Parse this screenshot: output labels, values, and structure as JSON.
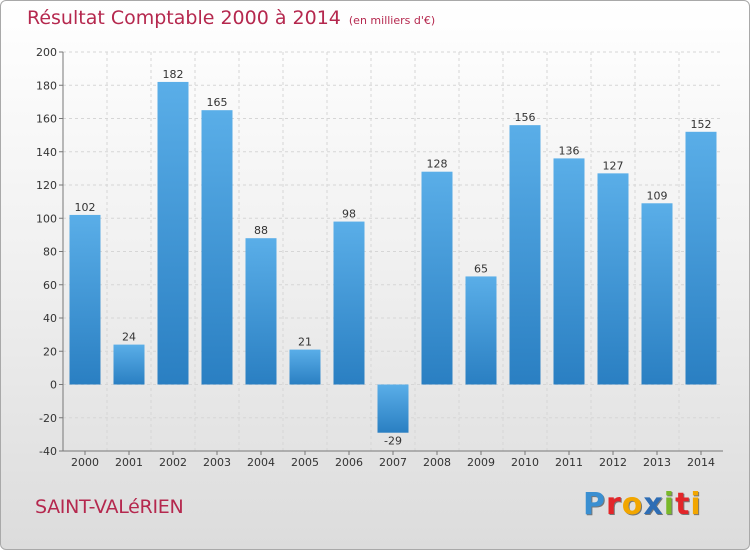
{
  "header": {
    "title": "Résultat Comptable 2000 à 2014",
    "subtitle": "(en milliers d'€)"
  },
  "footer": {
    "town": "SAINT-VALéRIEN",
    "logo_letters": [
      "P",
      "r",
      "o",
      "x",
      "i",
      "t",
      "i"
    ]
  },
  "colors": {
    "title": "#b5284e",
    "bar_top": "#5aaee8",
    "bar_bottom": "#2a7fc2",
    "grid": "#d6d6d6"
  },
  "chart_data": {
    "type": "bar",
    "title": "Résultat Comptable 2000 à 2014",
    "subtitle": "(en milliers d'€)",
    "categories": [
      "2000",
      "2001",
      "2002",
      "2003",
      "2004",
      "2005",
      "2006",
      "2007",
      "2008",
      "2009",
      "2010",
      "2011",
      "2012",
      "2013",
      "2014"
    ],
    "values": [
      102,
      24,
      182,
      165,
      88,
      21,
      98,
      -29,
      128,
      65,
      156,
      136,
      127,
      109,
      152
    ],
    "ylim": [
      -40,
      200
    ],
    "yticks": [
      -40,
      -20,
      0,
      20,
      40,
      60,
      80,
      100,
      120,
      140,
      160,
      180,
      200
    ],
    "grid": true,
    "grid_style": "dashed-horizontal"
  }
}
